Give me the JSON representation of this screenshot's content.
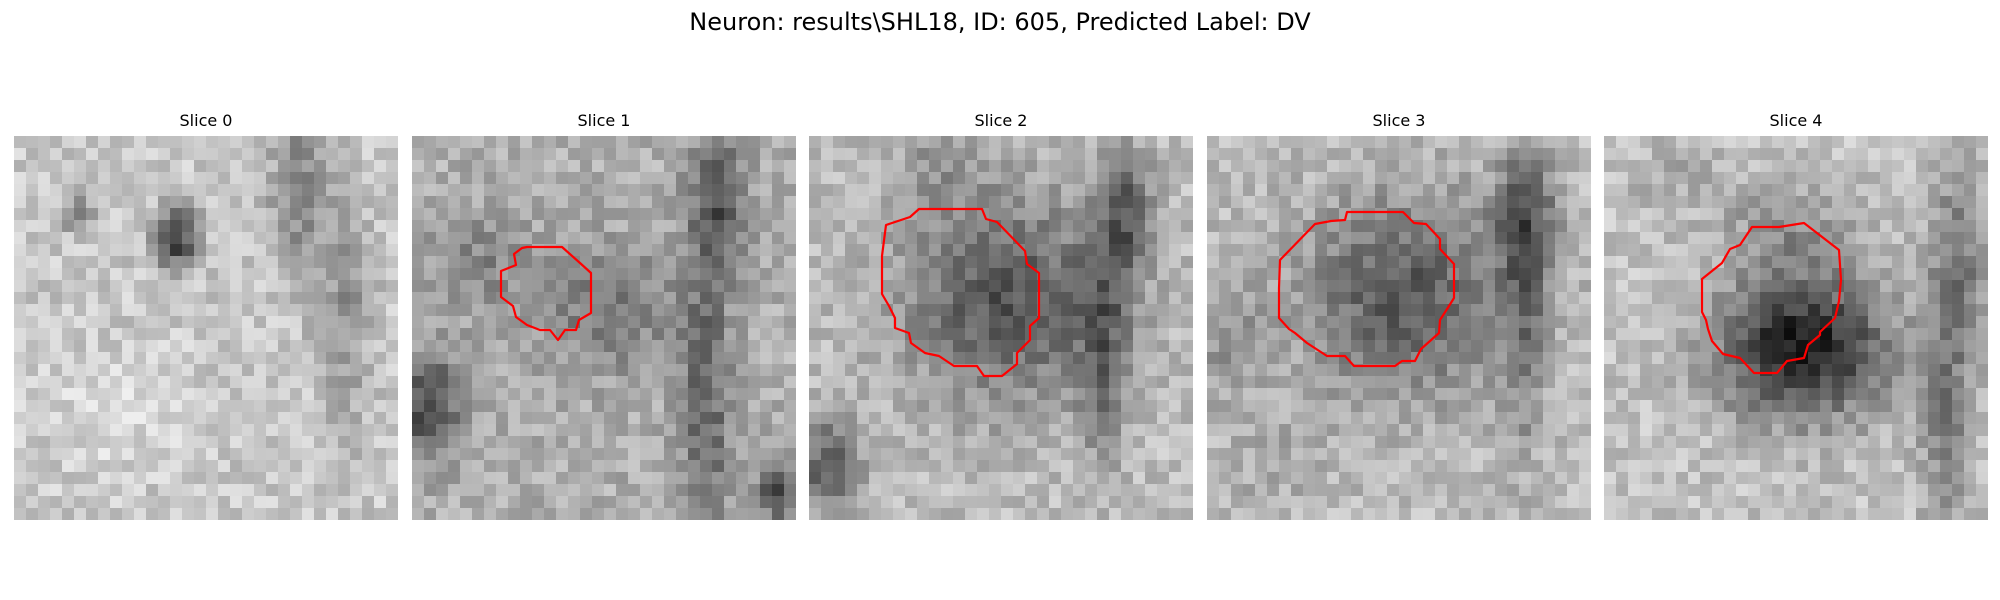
{
  "figure": {
    "title": "Neuron: results\\SHL18, ID: 605, Predicted Label: DV"
  },
  "panels": [
    {
      "title": "Slice 0",
      "has_contour": false
    },
    {
      "title": "Slice 1",
      "has_contour": true
    },
    {
      "title": "Slice 2",
      "has_contour": true
    },
    {
      "title": "Slice 3",
      "has_contour": true
    },
    {
      "title": "Slice 4",
      "has_contour": true
    }
  ],
  "style": {
    "contour_color": "#ff0000",
    "colormap": "gray"
  }
}
